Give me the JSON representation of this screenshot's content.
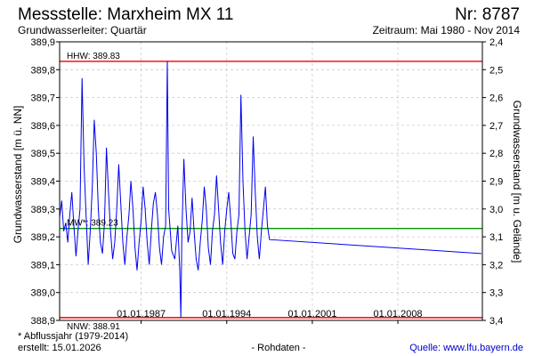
{
  "header": {
    "title": "Messstelle: Marxheim MX 11",
    "number": "Nr: 8787",
    "subtitle": "Grundwasserleiter: Quartär",
    "period": "Zeitraum: Mai 1980 - Nov 2014"
  },
  "footer": {
    "note": "* Abflussjahr (1979-2014)",
    "created": "erstellt:  15.01.2026",
    "rawdata": "- Rohdaten -",
    "source": "Quelle:  www.lfu.bayern.de"
  },
  "colors": {
    "series": "#0000ee",
    "limit": "#ee0000",
    "mean": "#009900",
    "grid": "#cccccc"
  },
  "chart_data": {
    "type": "line",
    "ylabel": "Grundwasserstand [m ü. NN]",
    "ylabel_right": "Grundwasserstand [m u. Gelände]",
    "x_range": [
      "1980-05-01",
      "2014-11-30"
    ],
    "ylim": [
      388.9,
      389.9
    ],
    "ylim_right": [
      3.4,
      2.4
    ],
    "x_ticks": [
      "01.01.1987",
      "01.01.1994",
      "01.01.2001",
      "01.01.2008"
    ],
    "y_ticks": [
      "388,9",
      "389,0",
      "389,1",
      "389,2",
      "389,3",
      "389,4",
      "389,5",
      "389,6",
      "389,7",
      "389,8",
      "389,9"
    ],
    "y_ticks_right": [
      "3,4",
      "3,3",
      "3,2",
      "3,1",
      "3,0",
      "2,9",
      "2,8",
      "2,7",
      "2,6",
      "2,5",
      "2,4"
    ],
    "grid": true,
    "reference_lines": [
      {
        "label": "HHW: 389.83",
        "value": 389.83,
        "kind": "limit"
      },
      {
        "label": "MW*: 389.23",
        "value": 389.23,
        "kind": "mean"
      },
      {
        "label": "NNW: 388.91",
        "value": 388.91,
        "kind": "limit"
      }
    ],
    "series": [
      {
        "points": [
          [
            "1980-05-01",
            389.27
          ],
          [
            "1980-07-01",
            389.33
          ],
          [
            "1980-09-01",
            389.22
          ],
          [
            "1980-11-01",
            389.25
          ],
          [
            "1981-01-01",
            389.18
          ],
          [
            "1981-03-01",
            389.28
          ],
          [
            "1981-05-01",
            389.36
          ],
          [
            "1981-07-01",
            389.24
          ],
          [
            "1981-09-01",
            389.13
          ],
          [
            "1981-11-01",
            389.22
          ],
          [
            "1982-01-01",
            389.3
          ],
          [
            "1982-03-01",
            389.77
          ],
          [
            "1982-05-01",
            389.45
          ],
          [
            "1982-07-01",
            389.28
          ],
          [
            "1982-09-01",
            389.1
          ],
          [
            "1982-11-01",
            389.22
          ],
          [
            "1983-01-01",
            389.38
          ],
          [
            "1983-03-01",
            389.62
          ],
          [
            "1983-05-01",
            389.5
          ],
          [
            "1983-07-01",
            389.3
          ],
          [
            "1983-09-01",
            389.18
          ],
          [
            "1983-11-01",
            389.14
          ],
          [
            "1984-01-01",
            389.25
          ],
          [
            "1984-03-01",
            389.52
          ],
          [
            "1984-05-01",
            389.36
          ],
          [
            "1984-07-01",
            389.22
          ],
          [
            "1984-09-01",
            389.12
          ],
          [
            "1984-11-01",
            389.18
          ],
          [
            "1985-01-01",
            389.3
          ],
          [
            "1985-03-01",
            389.46
          ],
          [
            "1985-05-01",
            389.32
          ],
          [
            "1985-07-01",
            389.18
          ],
          [
            "1985-09-01",
            389.1
          ],
          [
            "1985-11-01",
            389.2
          ],
          [
            "1986-01-01",
            389.28
          ],
          [
            "1986-03-01",
            389.4
          ],
          [
            "1986-05-01",
            389.3
          ],
          [
            "1986-07-01",
            389.16
          ],
          [
            "1986-09-01",
            389.08
          ],
          [
            "1986-11-01",
            389.18
          ],
          [
            "1987-01-01",
            389.26
          ],
          [
            "1987-03-01",
            389.38
          ],
          [
            "1987-05-01",
            389.3
          ],
          [
            "1987-07-01",
            389.18
          ],
          [
            "1987-09-01",
            389.1
          ],
          [
            "1987-11-01",
            389.22
          ],
          [
            "1988-01-01",
            389.32
          ],
          [
            "1988-03-01",
            389.36
          ],
          [
            "1988-05-01",
            389.28
          ],
          [
            "1988-07-01",
            389.16
          ],
          [
            "1988-09-01",
            389.1
          ],
          [
            "1988-11-01",
            389.2
          ],
          [
            "1989-01-01",
            389.24
          ],
          [
            "1989-02-20",
            389.83
          ],
          [
            "1989-04-01",
            389.3
          ],
          [
            "1989-07-01",
            389.15
          ],
          [
            "1989-10-01",
            389.12
          ],
          [
            "1990-01-01",
            389.24
          ],
          [
            "1990-03-01",
            389.08
          ],
          [
            "1990-04-01",
            388.91
          ],
          [
            "1990-05-01",
            389.2
          ],
          [
            "1990-07-01",
            389.48
          ],
          [
            "1990-09-01",
            389.3
          ],
          [
            "1990-11-01",
            389.18
          ],
          [
            "1991-01-01",
            389.22
          ],
          [
            "1991-03-01",
            389.34
          ],
          [
            "1991-05-01",
            389.22
          ],
          [
            "1991-07-01",
            389.12
          ],
          [
            "1991-09-01",
            389.08
          ],
          [
            "1991-11-01",
            389.18
          ],
          [
            "1992-01-01",
            389.26
          ],
          [
            "1992-03-01",
            389.38
          ],
          [
            "1992-05-01",
            389.3
          ],
          [
            "1992-07-01",
            389.16
          ],
          [
            "1992-09-01",
            389.1
          ],
          [
            "1992-11-01",
            389.22
          ],
          [
            "1993-01-01",
            389.28
          ],
          [
            "1993-03-01",
            389.42
          ],
          [
            "1993-05-01",
            389.3
          ],
          [
            "1993-07-01",
            389.18
          ],
          [
            "1993-09-01",
            389.1
          ],
          [
            "1993-11-01",
            389.22
          ],
          [
            "1994-01-01",
            389.3
          ],
          [
            "1994-03-01",
            389.36
          ],
          [
            "1994-05-01",
            389.26
          ],
          [
            "1994-07-01",
            389.14
          ],
          [
            "1994-09-01",
            389.12
          ],
          [
            "1994-11-01",
            389.22
          ],
          [
            "1995-01-01",
            389.28
          ],
          [
            "1995-03-01",
            389.71
          ],
          [
            "1995-05-01",
            389.4
          ],
          [
            "1995-07-01",
            389.22
          ],
          [
            "1995-09-01",
            389.12
          ],
          [
            "1995-11-01",
            389.2
          ],
          [
            "1996-01-01",
            389.28
          ],
          [
            "1996-03-01",
            389.56
          ],
          [
            "1996-05-01",
            389.36
          ],
          [
            "1996-07-01",
            389.2
          ],
          [
            "1996-09-01",
            389.12
          ],
          [
            "1996-11-01",
            389.22
          ],
          [
            "1997-01-01",
            389.3
          ],
          [
            "1997-03-01",
            389.38
          ],
          [
            "1997-05-01",
            389.24
          ],
          [
            "1997-07-01",
            389.19
          ],
          [
            "2014-11-01",
            389.14
          ]
        ]
      }
    ]
  }
}
